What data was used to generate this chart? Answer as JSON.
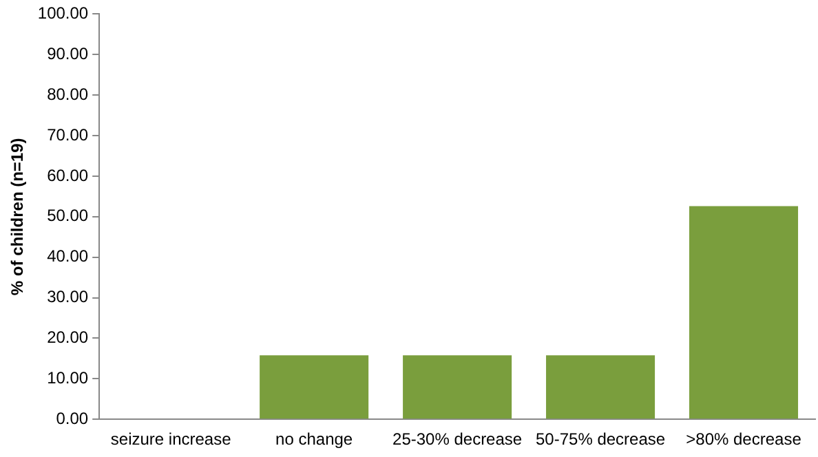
{
  "chart_data": {
    "type": "bar",
    "ylabel": "% of children (n=19)",
    "categories": [
      "seizure increase",
      "no change",
      "25-30% decrease",
      "50-75% decrease",
      ">80% decrease"
    ],
    "values": [
      0,
      15.8,
      15.8,
      15.8,
      52.6
    ],
    "color": "#7a9e3d",
    "ylim": [
      0,
      100
    ],
    "yticks": [
      {
        "value": 0,
        "label": "0.00"
      },
      {
        "value": 10,
        "label": "10.00"
      },
      {
        "value": 20,
        "label": "20.00"
      },
      {
        "value": 30,
        "label": "30.00"
      },
      {
        "value": 40,
        "label": "40.00"
      },
      {
        "value": 50,
        "label": "50.00"
      },
      {
        "value": 60,
        "label": "60.00"
      },
      {
        "value": 70,
        "label": "70.00"
      },
      {
        "value": 80,
        "label": "80.00"
      },
      {
        "value": 90,
        "label": "90.00"
      },
      {
        "value": 100,
        "label": "100.00"
      }
    ],
    "grid": false,
    "legend": false
  }
}
